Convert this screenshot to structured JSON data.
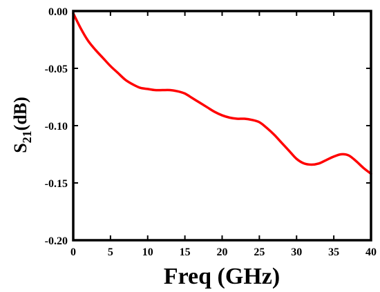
{
  "chart_data": {
    "type": "line",
    "title": "",
    "xlabel": "Freq (GHz)",
    "ylabel": {
      "main": "S",
      "sub": "21",
      "unit": "(dB)"
    },
    "xlim": [
      0,
      40
    ],
    "ylim": [
      -0.2,
      0.0
    ],
    "xticks": [
      0,
      5,
      10,
      15,
      20,
      25,
      30,
      35,
      40
    ],
    "yticks": [
      0.0,
      -0.05,
      -0.1,
      -0.15,
      -0.2
    ],
    "xtick_labels": [
      "0",
      "5",
      "10",
      "15",
      "20",
      "25",
      "30",
      "35",
      "40"
    ],
    "ytick_labels": [
      "0.00",
      "-0.05",
      "-0.10",
      "-0.15",
      "-0.20"
    ],
    "grid": false,
    "legend": "none",
    "series": [
      {
        "color": "#ff0000",
        "x": [
          0,
          1,
          2,
          3,
          4,
          5,
          6,
          7,
          8,
          9,
          10,
          11,
          12,
          13,
          14,
          15,
          16,
          17,
          18,
          19,
          20,
          21,
          22,
          23,
          24,
          25,
          26,
          27,
          28,
          29,
          30,
          31,
          32,
          33,
          34,
          35,
          36,
          37,
          38,
          39,
          40
        ],
        "y": [
          -0.002,
          -0.015,
          -0.026,
          -0.034,
          -0.041,
          -0.048,
          -0.054,
          -0.06,
          -0.064,
          -0.067,
          -0.068,
          -0.069,
          -0.069,
          -0.069,
          -0.07,
          -0.072,
          -0.076,
          -0.08,
          -0.084,
          -0.088,
          -0.091,
          -0.093,
          -0.094,
          -0.094,
          -0.095,
          -0.097,
          -0.102,
          -0.108,
          -0.115,
          -0.122,
          -0.129,
          -0.133,
          -0.134,
          -0.133,
          -0.13,
          -0.127,
          -0.125,
          -0.126,
          -0.131,
          -0.137,
          -0.142
        ]
      }
    ]
  }
}
